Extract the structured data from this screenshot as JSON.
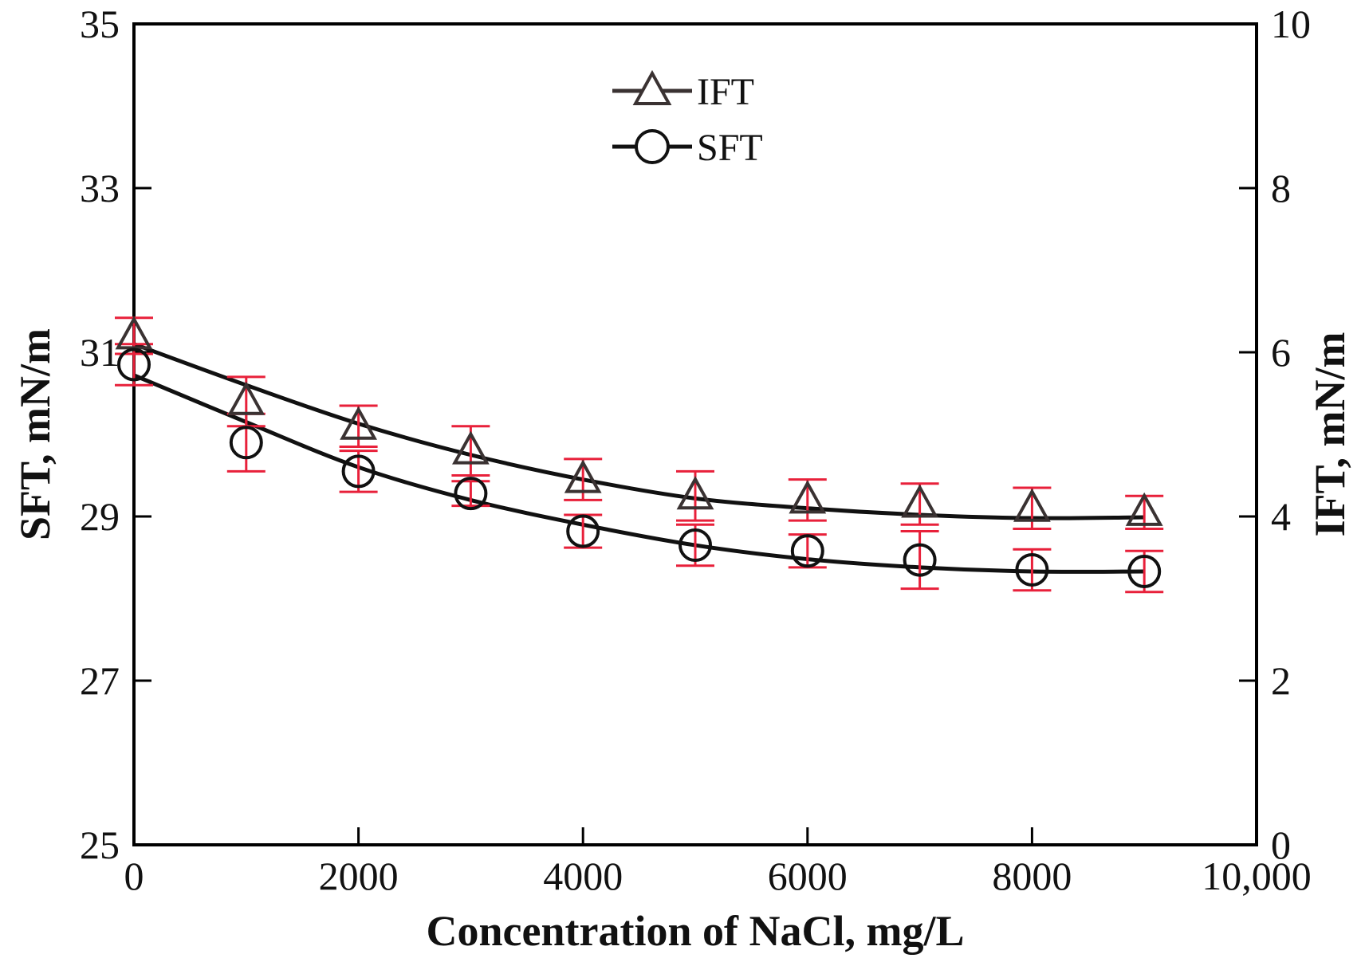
{
  "chart_data": {
    "type": "scatter",
    "title": "",
    "xlabel": "Concentration of NaCl, mg/L",
    "ylabel_left": "SFT, mN/m",
    "ylabel_right": "IFT, mN/m",
    "xlim": [
      0,
      10000
    ],
    "ylim_left": [
      25,
      35
    ],
    "ylim_right": [
      0,
      10
    ],
    "xticks": [
      0,
      2000,
      4000,
      6000,
      8000,
      10000
    ],
    "xtick_labels": [
      "0",
      "2000",
      "4000",
      "6000",
      "8000",
      "10,000"
    ],
    "yticks_left": [
      25,
      27,
      29,
      31,
      33,
      35
    ],
    "ytick_labels_left": [
      "25",
      "27",
      "29",
      "31",
      "33",
      "35"
    ],
    "yticks_right": [
      0,
      2,
      4,
      6,
      8,
      10
    ],
    "ytick_labels_right": [
      "0",
      "2",
      "4",
      "6",
      "8",
      "10"
    ],
    "grid": false,
    "legend_position": "top-center",
    "colors": {
      "axis": "#000000",
      "series": "#3a3232",
      "fit": "#111111",
      "error_bar": "#e8203a"
    },
    "series": [
      {
        "name": "IFT",
        "axis": "right",
        "marker": "triangle",
        "x": [
          0,
          1000,
          2000,
          3000,
          4000,
          5000,
          6000,
          7000,
          8000,
          9000
        ],
        "values": [
          6.2,
          5.4,
          5.1,
          4.8,
          4.45,
          4.25,
          4.2,
          4.15,
          4.1,
          4.05
        ],
        "error": [
          0.22,
          0.3,
          0.25,
          0.3,
          0.25,
          0.3,
          0.25,
          0.25,
          0.25,
          0.2
        ],
        "fit_x": [
          0,
          1000,
          2000,
          3000,
          4000,
          5000,
          6000,
          7000,
          8000,
          9000
        ],
        "fit_values": [
          6.1,
          5.6,
          5.13,
          4.75,
          4.45,
          4.22,
          4.1,
          4.02,
          3.98,
          3.99
        ]
      },
      {
        "name": "SFT",
        "axis": "left",
        "marker": "circle",
        "x": [
          0,
          1000,
          2000,
          3000,
          4000,
          5000,
          6000,
          7000,
          8000,
          9000
        ],
        "values": [
          30.85,
          29.9,
          29.55,
          29.28,
          28.82,
          28.65,
          28.58,
          28.47,
          28.35,
          28.33
        ],
        "error": [
          0.25,
          0.35,
          0.25,
          0.15,
          0.2,
          0.25,
          0.2,
          0.35,
          0.25,
          0.25
        ],
        "fit_x": [
          0,
          1000,
          2000,
          3000,
          4000,
          5000,
          6000,
          7000,
          8000,
          9000
        ],
        "fit_values": [
          30.72,
          30.15,
          29.6,
          29.2,
          28.9,
          28.65,
          28.48,
          28.38,
          28.33,
          28.33
        ]
      }
    ]
  }
}
